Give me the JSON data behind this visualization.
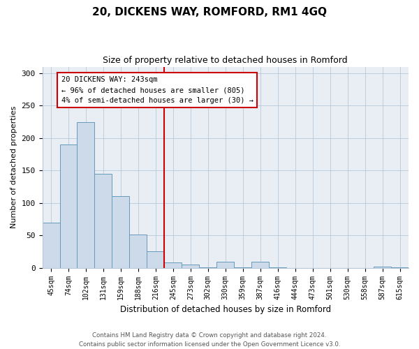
{
  "title": "20, DICKENS WAY, ROMFORD, RM1 4GQ",
  "subtitle": "Size of property relative to detached houses in Romford",
  "xlabel": "Distribution of detached houses by size in Romford",
  "ylabel": "Number of detached properties",
  "bar_labels": [
    "45sqm",
    "74sqm",
    "102sqm",
    "131sqm",
    "159sqm",
    "188sqm",
    "216sqm",
    "245sqm",
    "273sqm",
    "302sqm",
    "330sqm",
    "359sqm",
    "387sqm",
    "416sqm",
    "444sqm",
    "473sqm",
    "501sqm",
    "530sqm",
    "558sqm",
    "587sqm",
    "615sqm"
  ],
  "bar_values": [
    70,
    190,
    225,
    145,
    111,
    51,
    25,
    8,
    5,
    1,
    9,
    1,
    9,
    1,
    0,
    0,
    0,
    0,
    0,
    2,
    1
  ],
  "bar_color": "#ccdaea",
  "bar_edge_color": "#6699bb",
  "vline_index": 7,
  "annotation_title": "20 DICKENS WAY: 243sqm",
  "annotation_line1": "← 96% of detached houses are smaller (805)",
  "annotation_line2": "4% of semi-detached houses are larger (30) →",
  "annotation_box_color": "#ffffff",
  "annotation_box_edge_color": "#cc0000",
  "vline_color": "#cc0000",
  "ylim": [
    0,
    310
  ],
  "yticks": [
    0,
    50,
    100,
    150,
    200,
    250,
    300
  ],
  "footer1": "Contains HM Land Registry data © Crown copyright and database right 2024.",
  "footer2": "Contains public sector information licensed under the Open Government Licence v3.0.",
  "bg_color": "#e8eef4"
}
